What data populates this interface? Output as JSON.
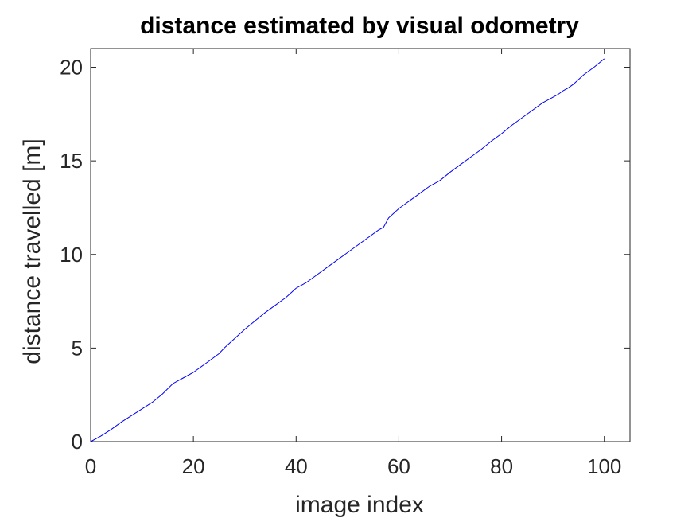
{
  "chart_data": {
    "type": "line",
    "title": "distance estimated by visual odometry",
    "xlabel": "image index",
    "ylabel": "distance travelled [m]",
    "xlim": [
      0,
      105
    ],
    "ylim": [
      0,
      21
    ],
    "xticks": [
      "0",
      "20",
      "40",
      "60",
      "80",
      "100"
    ],
    "yticks": [
      "0",
      "5",
      "10",
      "15",
      "20"
    ],
    "grid": false,
    "line_color": "#0000ff",
    "axis_color": "#262626",
    "series": [
      {
        "x": [
          0,
          2,
          4,
          6,
          8,
          10,
          12,
          14,
          16,
          18,
          19,
          20,
          22,
          24,
          25,
          26,
          28,
          30,
          32,
          34,
          36,
          38,
          40,
          42,
          44,
          46,
          48,
          50,
          52,
          54,
          56,
          57,
          58,
          60,
          62,
          64,
          66,
          67,
          68,
          70,
          72,
          74,
          76,
          78,
          80,
          82,
          84,
          86,
          88,
          89,
          90,
          91,
          92,
          93,
          94,
          96,
          98,
          100
        ],
        "y": [
          0,
          0.3,
          0.65,
          1.05,
          1.4,
          1.75,
          2.1,
          2.55,
          3.1,
          3.4,
          3.55,
          3.7,
          4.1,
          4.5,
          4.7,
          5.0,
          5.5,
          6.0,
          6.45,
          6.9,
          7.3,
          7.7,
          8.2,
          8.5,
          8.9,
          9.3,
          9.7,
          10.1,
          10.5,
          10.9,
          11.3,
          11.45,
          11.95,
          12.45,
          12.85,
          13.25,
          13.65,
          13.8,
          13.95,
          14.4,
          14.8,
          15.2,
          15.6,
          16.05,
          16.45,
          16.9,
          17.3,
          17.7,
          18.1,
          18.25,
          18.4,
          18.55,
          18.75,
          18.9,
          19.1,
          19.6,
          20.0,
          20.45
        ]
      }
    ]
  }
}
